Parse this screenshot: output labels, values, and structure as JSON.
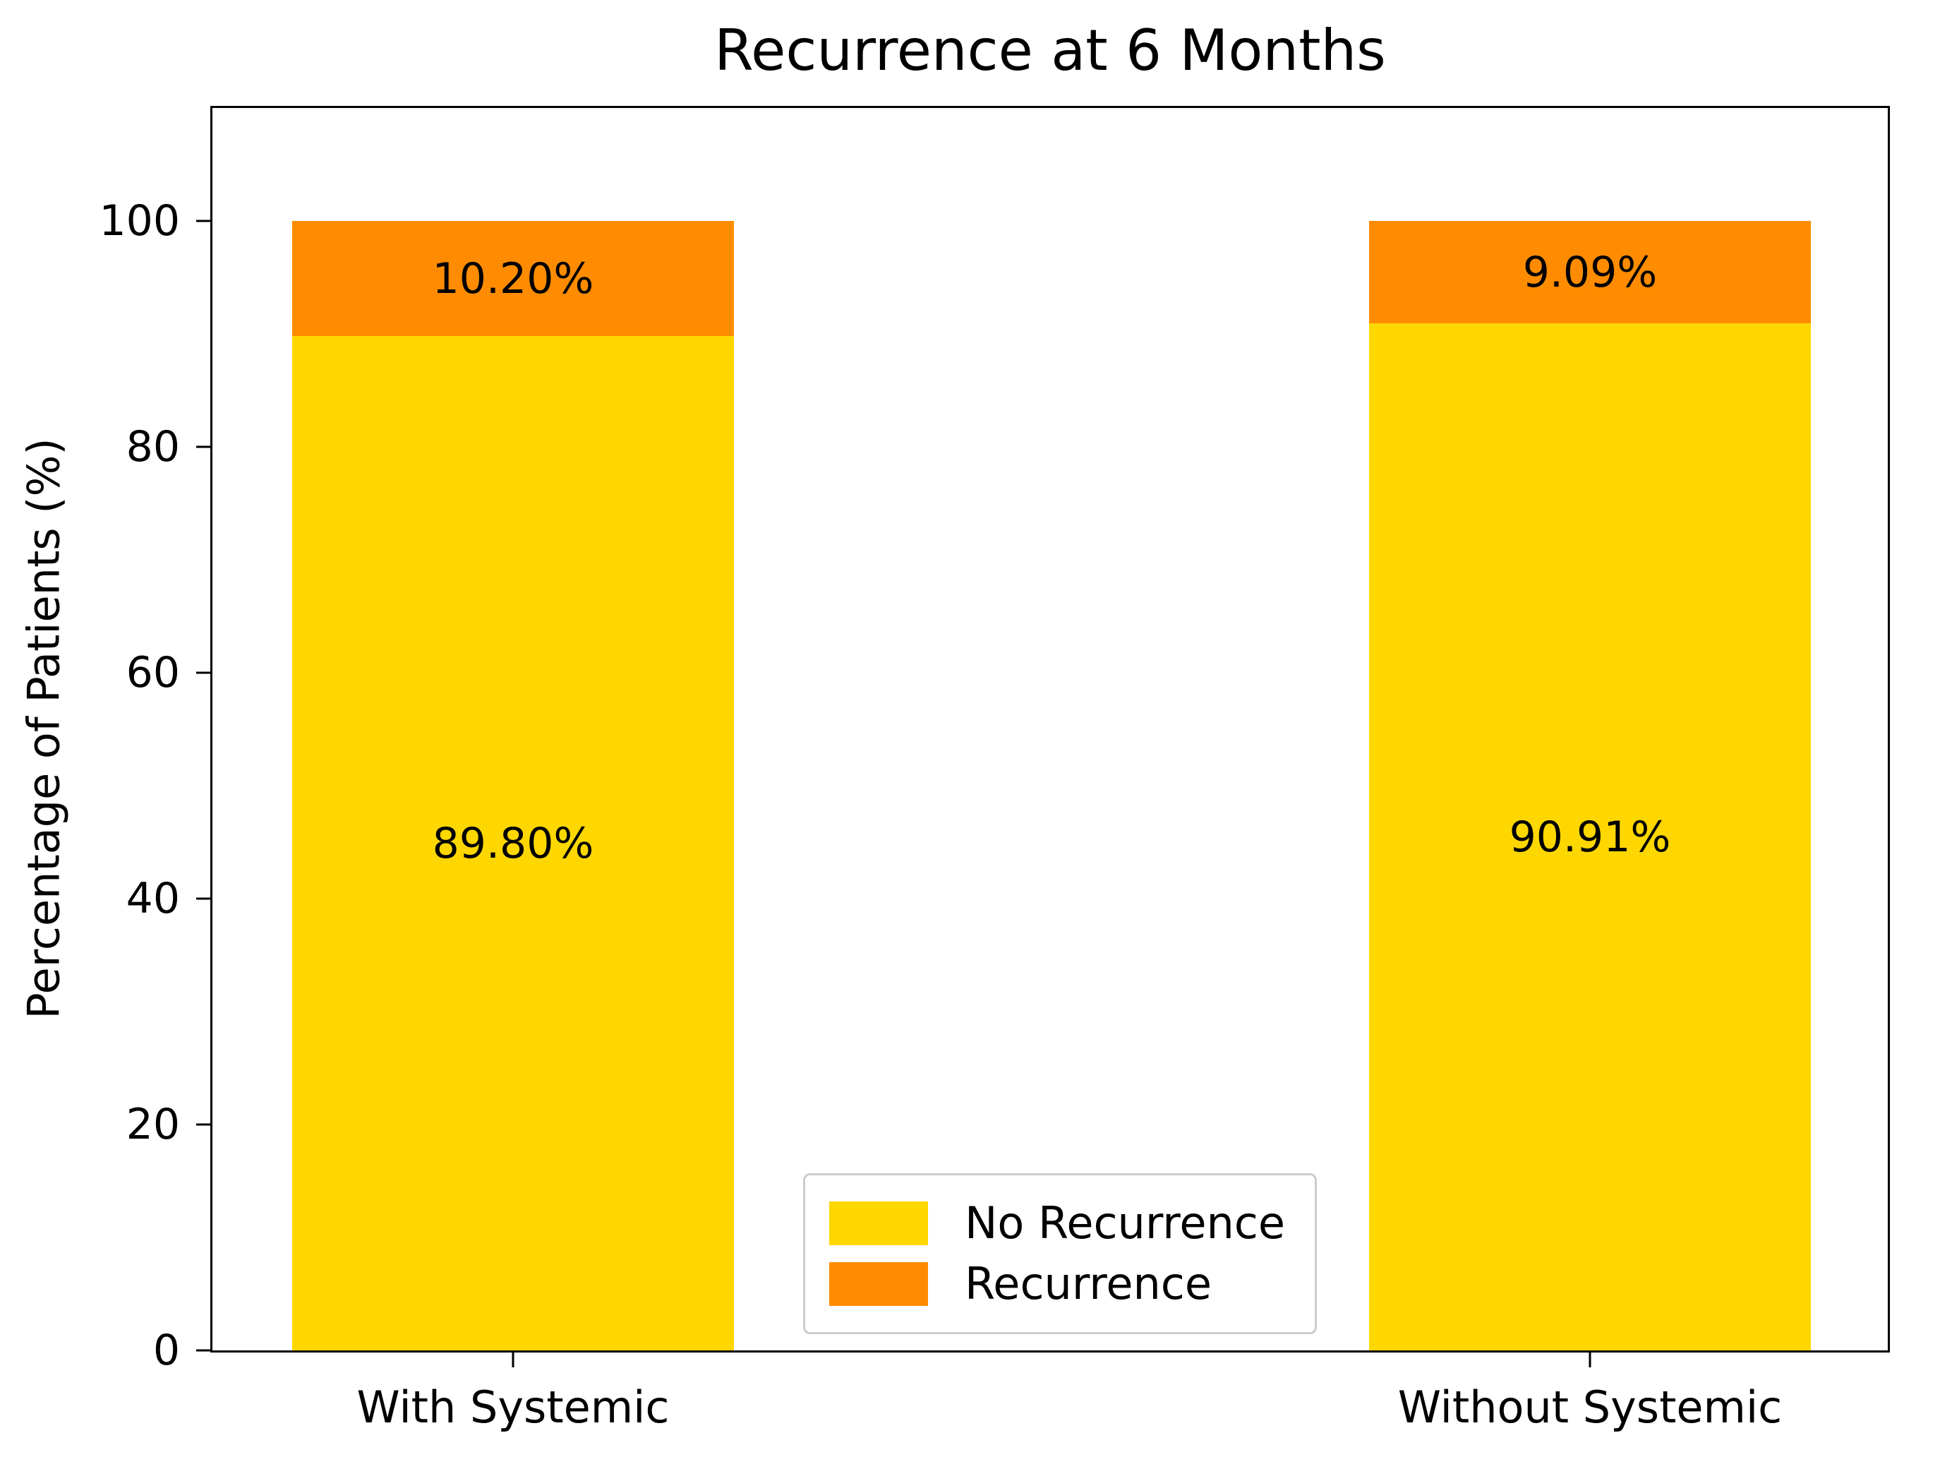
{
  "chart_data": {
    "type": "bar",
    "stacked": true,
    "title": "Recurrence at 6 Months",
    "xlabel": "",
    "ylabel": "Percentage of Patients (%)",
    "categories": [
      "With Systemic",
      "Without Systemic"
    ],
    "series": [
      {
        "name": "No Recurrence",
        "color": "#FFD700",
        "values": [
          89.8,
          90.91
        ],
        "data_labels": [
          "89.80%",
          "90.91%"
        ]
      },
      {
        "name": "Recurrence",
        "color": "#FF8C00",
        "values": [
          10.2,
          9.09
        ],
        "data_labels": [
          "10.20%",
          "9.09%"
        ]
      }
    ],
    "ylim": [
      0,
      110
    ],
    "yticks": [
      0,
      20,
      40,
      60,
      80,
      100
    ],
    "grid": false,
    "legend": {
      "position": "lower center",
      "entries": [
        "No Recurrence",
        "Recurrence"
      ]
    }
  }
}
